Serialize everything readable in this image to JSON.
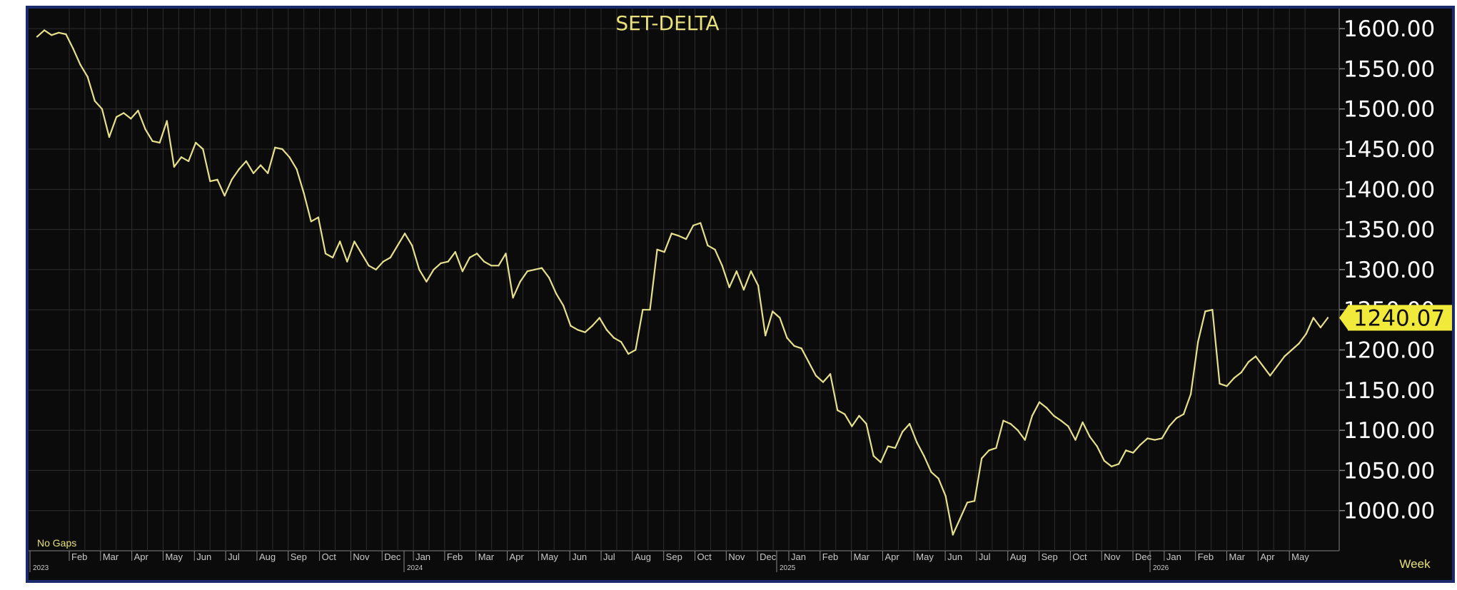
{
  "colors": {
    "background": "#0b0b0b",
    "grid": "#2e2e2e",
    "line": "#e6e08c",
    "text_yellow": "#e8e07a",
    "last_value_badge": "#f2ea3a",
    "frame": "#1a2a6a"
  },
  "labels": {
    "no_gaps": "No Gaps",
    "period": "Week"
  },
  "chart_data": {
    "type": "line",
    "title": "SET-DELTA",
    "last_value_label": "1240.07",
    "ylim": [
      950,
      1625
    ],
    "y_ticks": [
      "1600.00",
      "1550.00",
      "1500.00",
      "1450.00",
      "1400.00",
      "1350.00",
      "1300.00",
      "1250.00",
      "1200.00",
      "1150.00",
      "1100.00",
      "1050.00",
      "1000.00"
    ],
    "y_tick_values": [
      1600,
      1550,
      1500,
      1450,
      1400,
      1350,
      1300,
      1250,
      1200,
      1150,
      1100,
      1050,
      1000
    ],
    "grid": true,
    "x_month_labels": [
      "Feb",
      "Mar",
      "Apr",
      "May",
      "Jun",
      "Jul",
      "Aug",
      "Sep",
      "Oct",
      "Nov",
      "Dec",
      "Jan",
      "Feb",
      "Mar",
      "Apr",
      "May",
      "Jun",
      "Jul",
      "Aug",
      "Sep",
      "Oct",
      "Nov",
      "Dec",
      "Jan",
      "Feb",
      "Mar",
      "Apr",
      "May",
      "Jun",
      "Jul",
      "Aug",
      "Sep",
      "Oct",
      "Nov",
      "Dec",
      "Jan",
      "Feb",
      "Mar",
      "Apr",
      "May"
    ],
    "x_year_labels": [
      "2023",
      "2024",
      "2025",
      "2026"
    ],
    "series": [
      {
        "values": [
          1590,
          1598,
          1592,
          1595,
          1593,
          1575,
          1555,
          1540,
          1510,
          1500,
          1465,
          1490,
          1495,
          1488,
          1498,
          1475,
          1460,
          1458,
          1485,
          1428,
          1440,
          1435,
          1458,
          1450,
          1410,
          1412,
          1392,
          1412,
          1425,
          1435,
          1420,
          1430,
          1420,
          1452,
          1450,
          1440,
          1425,
          1395,
          1360,
          1365,
          1320,
          1315,
          1335,
          1310,
          1335,
          1320,
          1305,
          1300,
          1310,
          1315,
          1330,
          1345,
          1330,
          1300,
          1285,
          1300,
          1308,
          1310,
          1322,
          1298,
          1315,
          1320,
          1310,
          1305,
          1305,
          1320,
          1265,
          1285,
          1298,
          1300,
          1302,
          1290,
          1270,
          1255,
          1230,
          1225,
          1222,
          1230,
          1240,
          1225,
          1215,
          1210,
          1195,
          1200,
          1250,
          1250,
          1325,
          1322,
          1345,
          1342,
          1338,
          1355,
          1358,
          1330,
          1325,
          1305,
          1278,
          1298,
          1275,
          1298,
          1280,
          1218,
          1248,
          1240,
          1215,
          1205,
          1202,
          1185,
          1168,
          1160,
          1170,
          1125,
          1120,
          1105,
          1118,
          1108,
          1068,
          1060,
          1080,
          1078,
          1098,
          1108,
          1085,
          1068,
          1048,
          1040,
          1018,
          970,
          990,
          1010,
          1012,
          1065,
          1075,
          1078,
          1112,
          1108,
          1100,
          1088,
          1118,
          1135,
          1128,
          1118,
          1112,
          1105,
          1088,
          1110,
          1092,
          1080,
          1062,
          1055,
          1058,
          1075,
          1072,
          1082,
          1090,
          1088,
          1090,
          1105,
          1115,
          1120,
          1145,
          1210,
          1248,
          1250,
          1158,
          1155,
          1165,
          1172,
          1185,
          1192,
          1180,
          1168,
          1180,
          1192,
          1200,
          1208,
          1220,
          1240,
          1228,
          1240
        ]
      }
    ]
  }
}
